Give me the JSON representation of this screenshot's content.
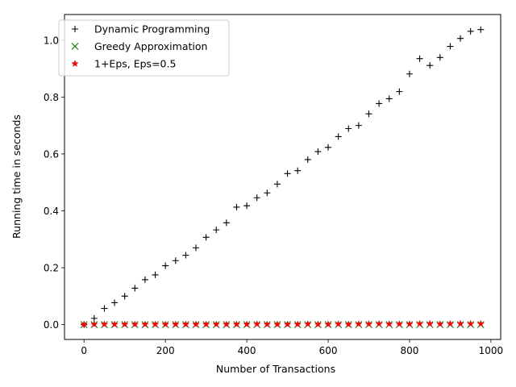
{
  "chart_data": {
    "type": "scatter",
    "xlabel": "Number of Transactions",
    "ylabel": "Running time in seconds",
    "xlim": [
      -48,
      1024
    ],
    "ylim": [
      -0.052,
      1.09
    ],
    "xticks": [
      0,
      200,
      400,
      600,
      800,
      1000
    ],
    "xtick_labels": [
      "0",
      "200",
      "400",
      "600",
      "800",
      "1000"
    ],
    "yticks": [
      0.0,
      0.2,
      0.4,
      0.6,
      0.8,
      1.0
    ],
    "ytick_labels": [
      "0.0",
      "0.2",
      "0.4",
      "0.6",
      "0.8",
      "1.0"
    ],
    "grid": false,
    "legend_position": "top-left",
    "x": [
      0,
      25,
      50,
      75,
      100,
      125,
      150,
      175,
      200,
      225,
      250,
      275,
      300,
      325,
      350,
      375,
      400,
      425,
      450,
      475,
      500,
      525,
      550,
      575,
      600,
      625,
      650,
      675,
      700,
      725,
      750,
      775,
      800,
      825,
      850,
      875,
      900,
      925,
      950,
      975
    ],
    "series": [
      {
        "name": "Dynamic Programming",
        "marker": "plus",
        "color": "#000000",
        "values": [
          0.0,
          0.022,
          0.057,
          0.077,
          0.1,
          0.128,
          0.158,
          0.175,
          0.207,
          0.225,
          0.244,
          0.27,
          0.307,
          0.333,
          0.358,
          0.413,
          0.418,
          0.446,
          0.463,
          0.494,
          0.531,
          0.541,
          0.58,
          0.608,
          0.623,
          0.661,
          0.689,
          0.7,
          0.741,
          0.777,
          0.794,
          0.819,
          0.881,
          0.935,
          0.911,
          0.939,
          0.978,
          1.006,
          1.031,
          1.037
        ]
      },
      {
        "name": "Greedy Approximation",
        "marker": "x",
        "color": "#008000",
        "values": [
          0.0,
          0.0,
          0.0,
          0.0,
          0.0,
          0.0,
          0.0,
          0.0,
          0.0,
          0.0,
          0.0,
          0.0,
          0.0,
          0.0,
          0.0,
          0.0,
          0.0,
          0.0,
          0.0,
          0.0,
          0.0,
          0.0,
          0.0,
          0.0,
          0.0,
          0.0,
          0.0,
          0.0,
          0.0,
          0.0,
          0.0,
          0.0,
          0.0,
          0.0,
          0.0,
          0.0,
          0.0,
          0.0,
          0.0,
          0.0
        ]
      },
      {
        "name": "1+Eps, Eps=0.5",
        "marker": "star",
        "color": "#ff0000",
        "values": [
          0.001,
          0.001,
          0.001,
          0.001,
          0.001,
          0.001,
          0.001,
          0.001,
          0.001,
          0.001,
          0.001,
          0.001,
          0.001,
          0.001,
          0.001,
          0.001,
          0.001,
          0.002,
          0.001,
          0.001,
          0.001,
          0.001,
          0.002,
          0.001,
          0.001,
          0.002,
          0.001,
          0.002,
          0.002,
          0.003,
          0.002,
          0.002,
          0.002,
          0.003,
          0.003,
          0.002,
          0.003,
          0.003,
          0.003,
          0.003
        ]
      }
    ]
  }
}
